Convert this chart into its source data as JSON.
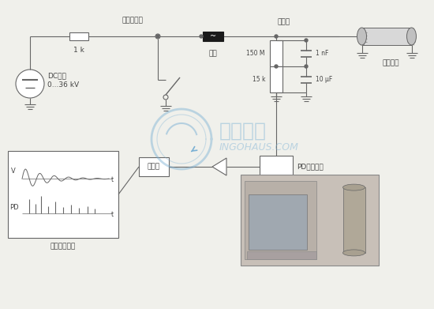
{
  "bg_color": "#f0f0eb",
  "line_color": "#666666",
  "text_color": "#444444",
  "watermark_color": "#7ab0d4",
  "figsize": [
    5.5,
    3.91
  ],
  "dpi": 100,
  "labels": {
    "resistor_1k": "1 k",
    "semiconductor_switch": "半導體開關",
    "inductor": "電感",
    "dc_source": "DC電源\n0...36 kV",
    "voltage_divider": "分壓器",
    "cable": "被試電纜",
    "r_150m": "150 M",
    "c_1nf": "1 nF",
    "r_15k": "15 k",
    "c_10uf": "10 μF",
    "pd_coupling": "PD耦合單元",
    "filter": "濣波器",
    "display": "顯示控制單元",
    "v_label": "V",
    "pd_label": "PD",
    "t_label": "t"
  }
}
